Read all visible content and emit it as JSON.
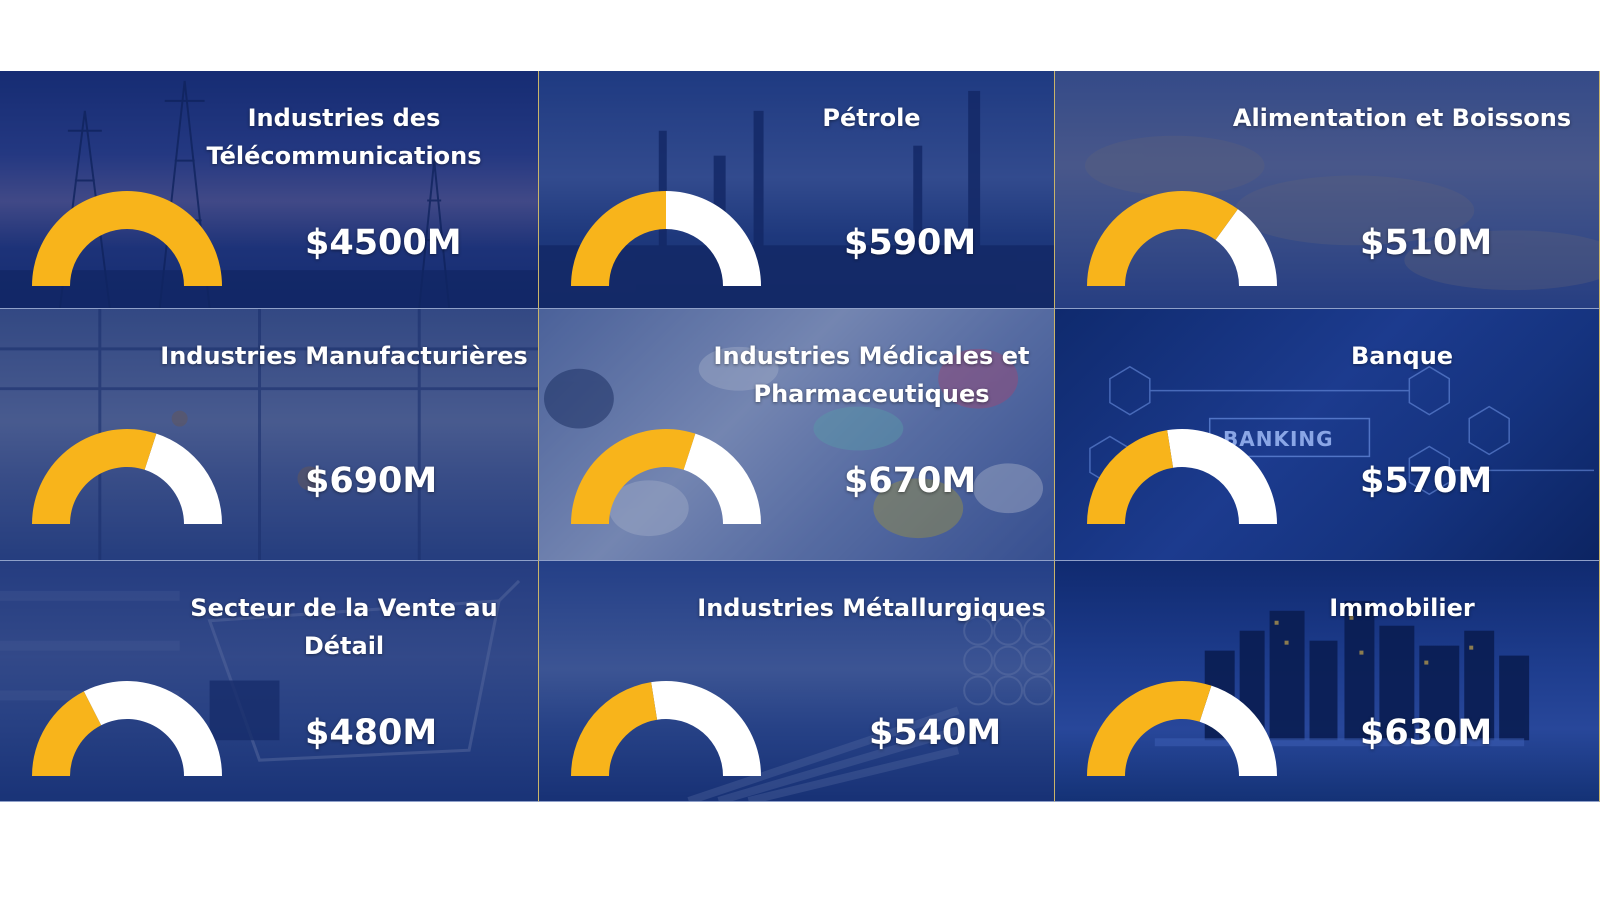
{
  "colors": {
    "gauge_fill": "#F8B41B",
    "gauge_track": "#FFFFFF",
    "overlay": "#122A6E"
  },
  "tiles": [
    {
      "title": "Industries des\nTélécommunications",
      "value": "$4500M",
      "gauge_fraction": 1.0,
      "icon": "telecom-towers-image"
    },
    {
      "title": "Pétrole",
      "value": "$590M",
      "gauge_fraction": 0.5,
      "icon": "oil-refinery-image"
    },
    {
      "title": "Alimentation et Boissons",
      "value": "$510M",
      "gauge_fraction": 0.7,
      "icon": "food-conveyor-image"
    },
    {
      "title": "Industries Manufacturières",
      "value": "$690M",
      "gauge_fraction": 0.6,
      "icon": "factory-robots-image"
    },
    {
      "title": "Industries Médicales et\nPharmaceutiques",
      "value": "$670M",
      "gauge_fraction": 0.6,
      "icon": "pills-image"
    },
    {
      "title": "Banque",
      "value": "$570M",
      "gauge_fraction": 0.45,
      "icon": "banking-network-image"
    },
    {
      "title": "Secteur de la Vente au Détail",
      "value": "$480M",
      "gauge_fraction": 0.35,
      "icon": "shopping-cart-image"
    },
    {
      "title": "Industries Métallurgiques",
      "value": "$540M",
      "gauge_fraction": 0.45,
      "icon": "metal-pipes-image"
    },
    {
      "title": "Immobilier",
      "value": "$630M",
      "gauge_fraction": 0.6,
      "icon": "city-skyline-image"
    }
  ],
  "banking_sign": "BANKING"
}
